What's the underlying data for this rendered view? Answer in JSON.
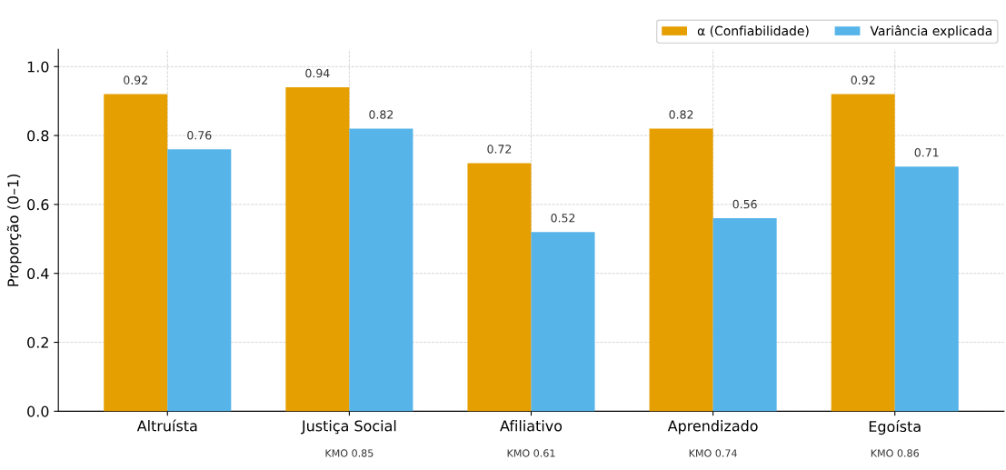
{
  "chart_data": {
    "type": "bar",
    "ylabel": "Proporção (0–1)",
    "categories": [
      "Altruísta",
      "Justiça Social",
      "Afiliativo",
      "Aprendizado",
      "Egoísta"
    ],
    "series": [
      {
        "name": "α (Confiabilidade)",
        "color": "#e69f00",
        "values": [
          0.92,
          0.94,
          0.72,
          0.82,
          0.92
        ]
      },
      {
        "name": "Variância explicada",
        "color": "#56b4e9",
        "values": [
          0.76,
          0.82,
          0.52,
          0.56,
          0.71
        ]
      }
    ],
    "ylim": [
      0,
      1.05
    ],
    "yticks": [
      {
        "value": 0,
        "label": "0.0"
      },
      {
        "value": 0.2,
        "label": "0.2"
      },
      {
        "value": 0.4,
        "label": "0.4"
      },
      {
        "value": 0.6,
        "label": "0.6"
      },
      {
        "value": 0.8,
        "label": "0.8"
      },
      {
        "value": 1.0,
        "label": "1.0"
      }
    ],
    "data_labels": true,
    "grid": true,
    "legend": "top right",
    "annotations": [
      "KMO 0.85",
      "KMO 0.61",
      "KMO 0.74",
      "KMO 0.86"
    ]
  }
}
